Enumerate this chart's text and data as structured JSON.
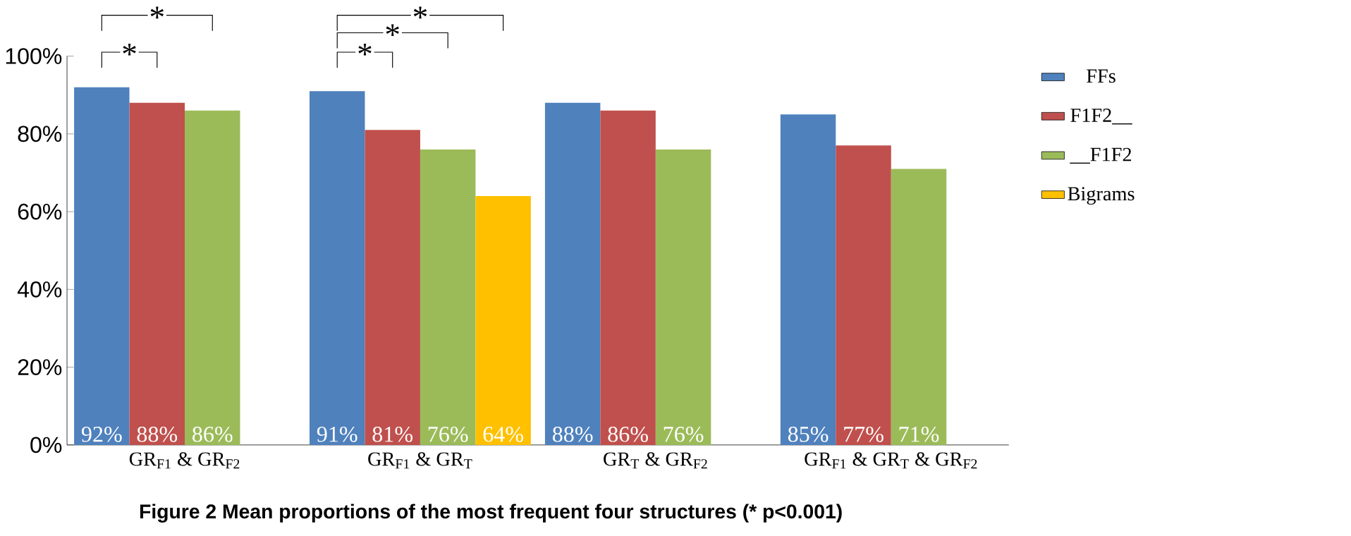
{
  "chart_data": {
    "type": "bar",
    "title": "Figure 2 Mean proportions of the most frequent four structures (* p<0.001)",
    "categories": [
      "GR$_{F1}$ & GR$_{F2}$",
      "GR$_{F1}$ & GR$_{T}$",
      "GR$_{T}$ & GR$_{F2}$",
      "GR$_{F1}$ & GR$_{T}$ & GR$_{F2}$"
    ],
    "series": [
      {
        "name": "FFs",
        "color": "#4f81bd",
        "values": [
          92,
          91,
          88,
          85
        ],
        "value_labels": [
          "92%",
          "91%",
          "88%",
          "85%"
        ]
      },
      {
        "name": "F1F2__",
        "color": "#c0504d",
        "values": [
          88,
          81,
          86,
          77
        ],
        "value_labels": [
          "88%",
          "81%",
          "86%",
          "77%"
        ]
      },
      {
        "name": "__F1F2",
        "color": "#9bbb59",
        "values": [
          86,
          76,
          76,
          71
        ],
        "value_labels": [
          "86%",
          "76%",
          "76%",
          "71%"
        ]
      },
      {
        "name": "Bigrams",
        "color": "#ffc000",
        "values": [
          null,
          64,
          null,
          null
        ],
        "value_labels": [
          null,
          "64%",
          null,
          null
        ]
      }
    ],
    "ylim": [
      0,
      100
    ],
    "yticks": [
      {
        "value": 0,
        "label": "0%"
      },
      {
        "value": 20,
        "label": "20%"
      },
      {
        "value": 40,
        "label": "40%"
      },
      {
        "value": 60,
        "label": "60%"
      },
      {
        "value": 80,
        "label": "80%"
      },
      {
        "value": 100,
        "label": "100%"
      }
    ],
    "legend": "right",
    "grid": false,
    "annotations": [
      "*",
      "*",
      "*",
      "*",
      "*"
    ]
  }
}
